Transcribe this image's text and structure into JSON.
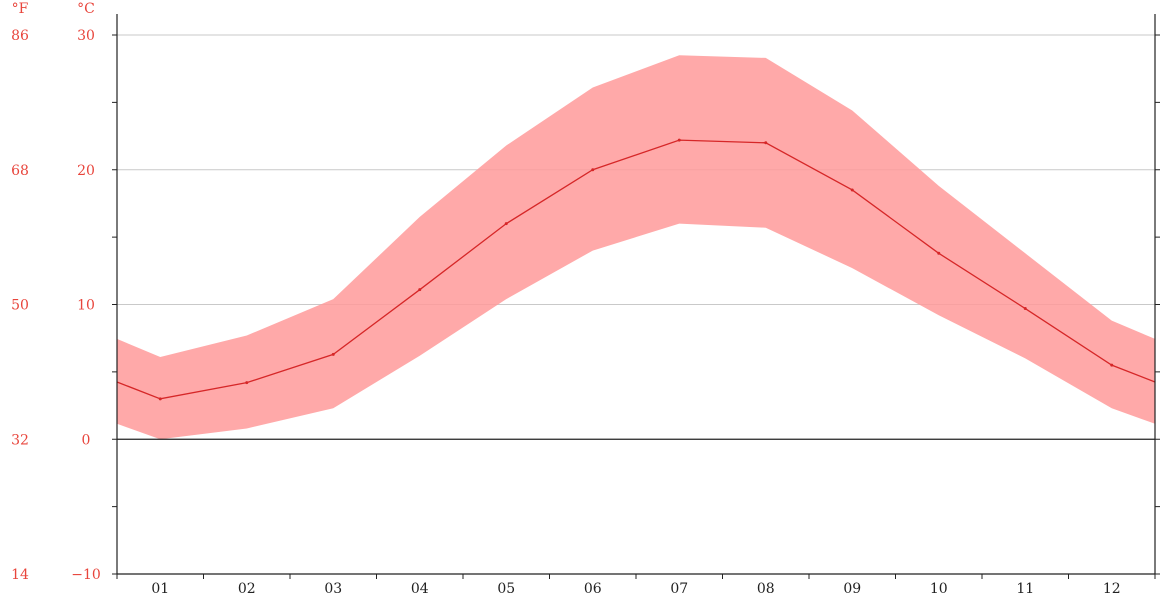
{
  "chart_data": {
    "type": "area",
    "x": [
      "01",
      "02",
      "03",
      "04",
      "05",
      "06",
      "07",
      "08",
      "09",
      "10",
      "11",
      "12"
    ],
    "left_unit_f": "°F",
    "left_unit_c": "°C",
    "y_ticks_c": [
      "30",
      "20",
      "10",
      "0",
      "−10"
    ],
    "y_ticks_f": [
      "86",
      "68",
      "50",
      "32",
      "14"
    ],
    "ylim": [
      -10,
      30
    ],
    "grid": true,
    "series": [
      {
        "values": [
          3.0,
          4.2,
          6.3,
          11.1,
          16.0,
          20.0,
          22.2,
          22.0,
          18.5,
          13.8,
          9.7,
          5.5
        ]
      }
    ],
    "range_band": {
      "max": [
        6.1,
        7.7,
        10.4,
        16.5,
        21.8,
        26.1,
        28.5,
        28.3,
        24.4,
        18.8,
        13.8,
        8.8
      ],
      "min": [
        0.0,
        0.8,
        2.3,
        6.2,
        10.4,
        14.0,
        16.0,
        15.7,
        12.7,
        9.2,
        6.0,
        2.3
      ]
    },
    "colors": {
      "band": "#ff9a9a",
      "line": "#d62728",
      "axis_labels": "#e8453c",
      "grid": "#c9c9c9",
      "axis": "#222222"
    }
  }
}
